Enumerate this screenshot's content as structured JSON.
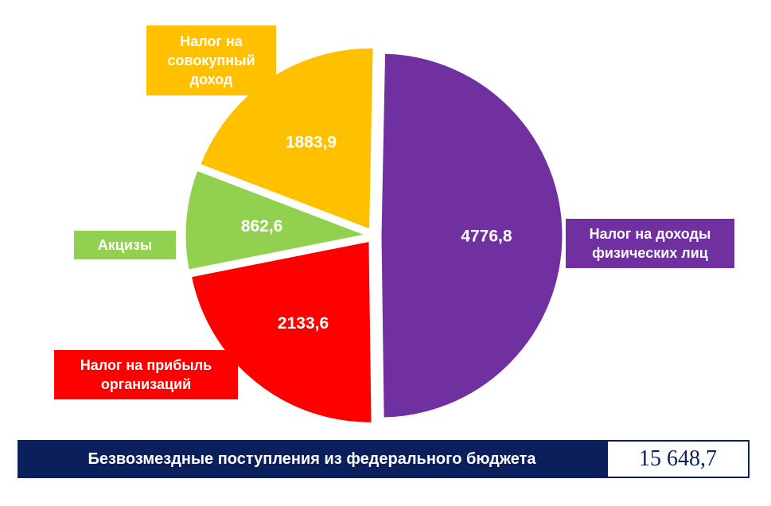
{
  "chart_data": {
    "type": "pie",
    "slices": [
      {
        "label": "Налог на доходы\nфизических лиц",
        "value_label": "4776,8",
        "value": 4776.8,
        "color": "#7030a0"
      },
      {
        "label": "Налог на прибыль\nорганизаций",
        "value_label": "2133,6",
        "value": 2133.6,
        "color": "#ff0000"
      },
      {
        "label": "Акцизы",
        "value_label": "862,6",
        "value": 862.6,
        "color": "#92d050"
      },
      {
        "label": "Налог на\nсовокупный\nдоход",
        "value_label": "1883,9",
        "value": 1883.9,
        "color": "#ffc000"
      }
    ]
  },
  "footer": {
    "label": "Безвозмездные поступления из федерального бюджета",
    "value": "15 648,7",
    "color": "#0a1f5c"
  }
}
